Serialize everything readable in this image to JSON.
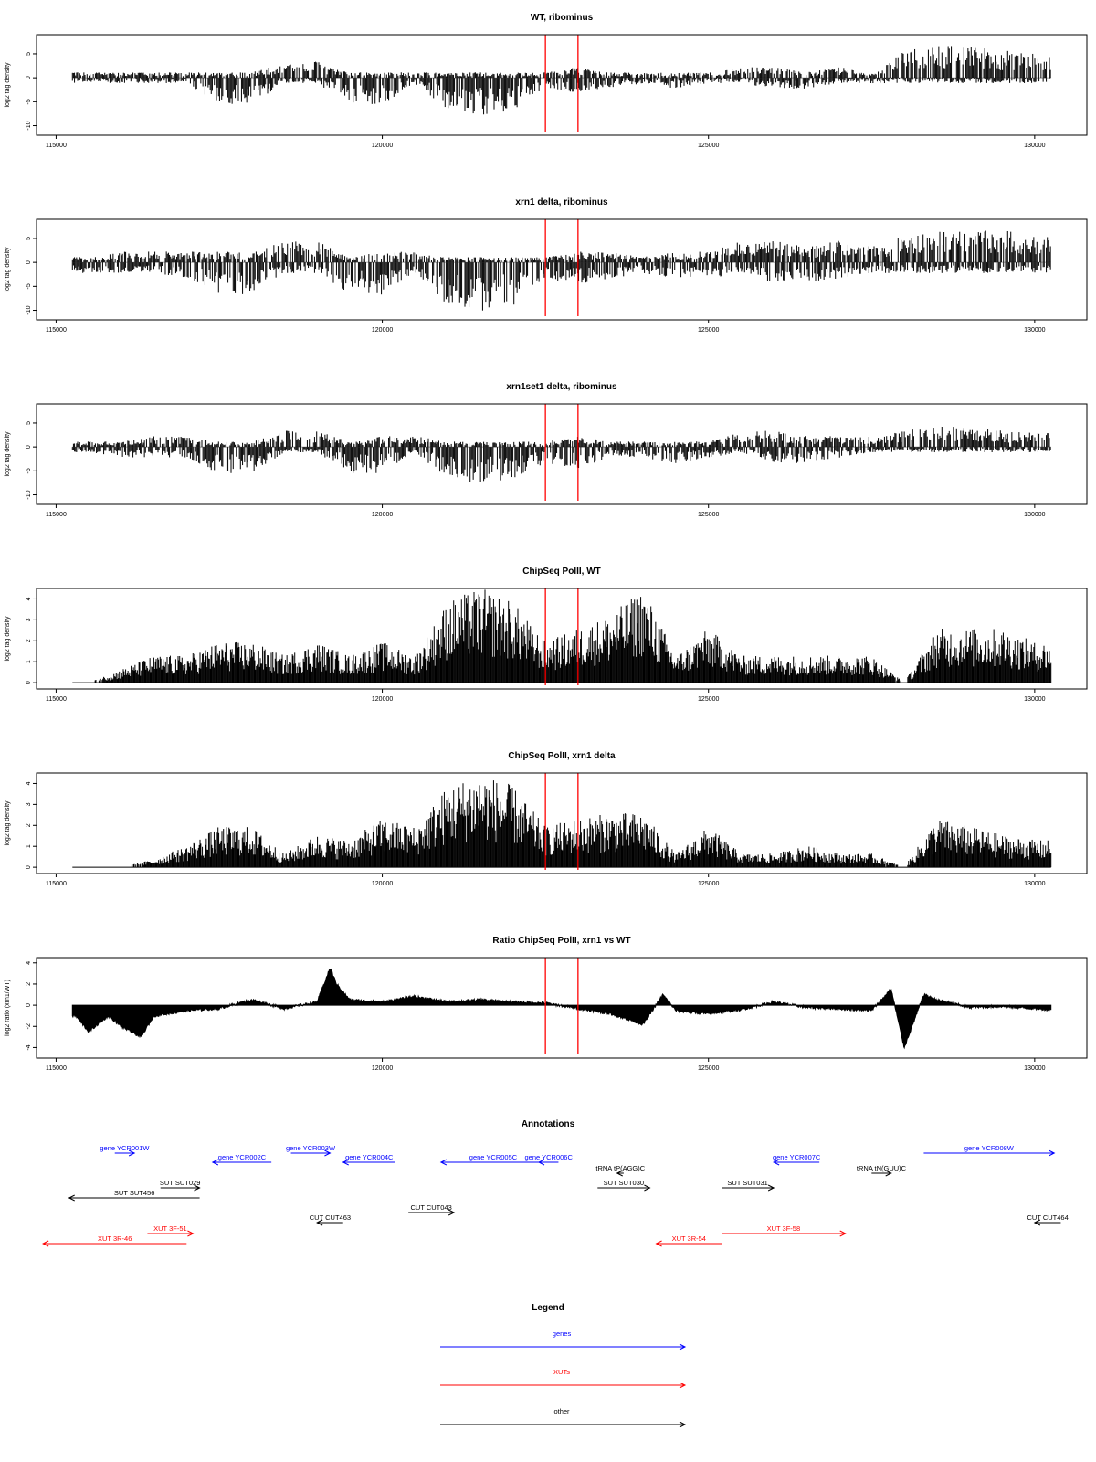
{
  "colors": {
    "genes": "#0000ff",
    "XUTs": "#ff0000",
    "other": "#000000",
    "marker": "#ff0000"
  },
  "x_axis": {
    "ticks": [
      115000,
      120000,
      125000,
      130000
    ],
    "labels": [
      "115000",
      "120000",
      "125000",
      "130000"
    ]
  },
  "markers": [
    122500,
    123000
  ],
  "chart_data": [
    {
      "type": "bar",
      "kind": "strand",
      "title": "WT, ribominus",
      "ylabel": "log2 tag density",
      "xlim": [
        114700,
        130800
      ],
      "ylim": [
        -12,
        9
      ],
      "yticks": [
        5,
        0,
        -5,
        -10
      ],
      "ytick_labels": [
        "5",
        "0",
        "-5",
        "-10"
      ],
      "x": [
        115500,
        116000,
        116500,
        117000,
        117500,
        118000,
        118500,
        119000,
        119500,
        120000,
        120500,
        121000,
        121500,
        122000,
        122500,
        123000,
        123500,
        124000,
        124500,
        125000,
        125500,
        126000,
        126500,
        127000,
        127500,
        128000,
        128500,
        129000,
        129500,
        130000
      ],
      "plus": [
        1,
        1,
        1,
        1,
        1,
        1,
        3,
        3,
        1,
        1,
        1,
        1,
        1,
        1,
        1,
        2,
        1,
        1,
        1,
        1,
        2,
        2,
        1,
        2,
        1,
        5,
        6,
        6,
        5,
        5
      ],
      "minus": [
        -1,
        -1,
        -1,
        -1,
        -5,
        -5,
        -1,
        -1,
        -5,
        -5,
        -1,
        -6,
        -7,
        -6,
        -2,
        -3,
        -2,
        -1,
        -2,
        -1,
        -1,
        -2,
        -2,
        -1,
        -1,
        -1,
        -1,
        -1,
        -1,
        -1
      ]
    },
    {
      "type": "bar",
      "kind": "strand",
      "title": "xrn1 delta, ribominus",
      "ylabel": "log2 tag density",
      "xlim": [
        114700,
        130800
      ],
      "ylim": [
        -12,
        9
      ],
      "yticks": [
        5,
        0,
        -5,
        -10
      ],
      "ytick_labels": [
        "5",
        "0",
        "-5",
        "-10"
      ],
      "x": [
        115500,
        116000,
        116500,
        117000,
        117500,
        118000,
        118500,
        119000,
        119500,
        120000,
        120500,
        121000,
        121500,
        122000,
        122500,
        123000,
        123500,
        124000,
        124500,
        125000,
        125500,
        126000,
        126500,
        127000,
        127500,
        128000,
        128500,
        129000,
        129500,
        130000
      ],
      "plus": [
        1,
        2,
        2,
        2,
        2,
        2,
        4,
        4,
        1,
        2,
        2,
        1,
        1,
        1,
        1,
        2,
        2,
        1,
        2,
        2,
        4,
        4,
        3,
        4,
        3,
        5,
        6,
        6,
        6,
        5
      ],
      "minus": [
        -2,
        -2,
        -2,
        -3,
        -6,
        -6,
        -2,
        -2,
        -6,
        -6,
        -2,
        -8,
        -9,
        -8,
        -3,
        -4,
        -3,
        -2,
        -3,
        -3,
        -2,
        -4,
        -4,
        -3,
        -2,
        -2,
        -2,
        -2,
        -2,
        -2
      ]
    },
    {
      "type": "bar",
      "kind": "strand",
      "title": "xrn1set1 delta, ribominus",
      "ylabel": "log2 tag density",
      "xlim": [
        114700,
        130800
      ],
      "ylim": [
        -12,
        9
      ],
      "yticks": [
        5,
        0,
        -5,
        -10
      ],
      "ytick_labels": [
        "5",
        "0",
        "-5",
        "-10"
      ],
      "x": [
        115500,
        116000,
        116500,
        117000,
        117500,
        118000,
        118500,
        119000,
        119500,
        120000,
        120500,
        121000,
        121500,
        122000,
        122500,
        123000,
        123500,
        124000,
        124500,
        125000,
        125500,
        126000,
        126500,
        127000,
        127500,
        128000,
        128500,
        129000,
        129500,
        130000
      ],
      "plus": [
        1,
        1,
        2,
        2,
        1,
        1,
        3,
        3,
        1,
        2,
        2,
        1,
        1,
        1,
        1,
        2,
        1,
        1,
        1,
        1,
        3,
        3,
        2,
        2,
        2,
        3,
        4,
        4,
        3,
        3
      ],
      "minus": [
        -1,
        -2,
        -2,
        -2,
        -5,
        -5,
        -1,
        -1,
        -5,
        -5,
        -1,
        -6,
        -7,
        -6,
        -3,
        -4,
        -2,
        -2,
        -3,
        -2,
        -1,
        -3,
        -3,
        -2,
        -1,
        -1,
        -1,
        -1,
        -1,
        -1
      ]
    },
    {
      "type": "bar",
      "kind": "positive",
      "title": "ChipSeq PolII, WT",
      "ylabel": "log2 tag density",
      "xlim": [
        114700,
        130800
      ],
      "ylim": [
        -0.3,
        4.5
      ],
      "yticks": [
        0,
        1,
        2,
        3,
        4
      ],
      "ytick_labels": [
        "0",
        "1",
        "2",
        "3",
        "4"
      ],
      "x": [
        115500,
        116000,
        116500,
        117000,
        117500,
        118000,
        118500,
        119000,
        119500,
        120000,
        120500,
        121000,
        121500,
        122000,
        122500,
        123000,
        123500,
        124000,
        124500,
        125000,
        125500,
        126000,
        126500,
        127000,
        127500,
        128000,
        128500,
        129000,
        129500,
        130000
      ],
      "values": [
        0,
        0.5,
        1,
        1,
        1.5,
        1.5,
        1,
        1.5,
        1,
        1.5,
        1,
        3,
        3.5,
        3,
        1.5,
        2,
        2.5,
        3.5,
        1,
        2,
        1,
        1,
        1,
        1,
        1,
        0,
        2,
        2,
        2,
        1.5
      ]
    },
    {
      "type": "bar",
      "kind": "positive",
      "title": "ChipSeq PolII, xrn1 delta",
      "ylabel": "log2 tag density",
      "xlim": [
        114700,
        130800
      ],
      "ylim": [
        -0.3,
        4.5
      ],
      "yticks": [
        0,
        1,
        2,
        3,
        4
      ],
      "ytick_labels": [
        "0",
        "1",
        "2",
        "3",
        "4"
      ],
      "x": [
        115500,
        116000,
        116500,
        117000,
        117500,
        118000,
        118500,
        119000,
        119500,
        120000,
        120500,
        121000,
        121500,
        122000,
        122500,
        123000,
        123500,
        124000,
        124500,
        125000,
        125500,
        126000,
        126500,
        127000,
        127500,
        128000,
        128500,
        129000,
        129500,
        130000
      ],
      "values": [
        0,
        0,
        0.3,
        0.8,
        1.5,
        1.5,
        0.5,
        1.2,
        1,
        1.8,
        1.5,
        3,
        3.5,
        3,
        1.5,
        1.8,
        2,
        2,
        0.5,
        1.5,
        0.5,
        0.5,
        0.8,
        0.5,
        0.5,
        0,
        1.8,
        1.5,
        1.2,
        1
      ]
    },
    {
      "type": "area",
      "kind": "signed",
      "title": "Ratio ChipSeq PolII, xrn1 vs WT",
      "ylabel": "log2 ratio (xrn1/WT)",
      "xlim": [
        114700,
        130800
      ],
      "ylim": [
        -5,
        4.5
      ],
      "yticks": [
        4,
        2,
        0,
        -2,
        -4
      ],
      "ytick_labels": [
        "4",
        "2",
        "0",
        "-2",
        "-4"
      ],
      "x": [
        115300,
        115500,
        115800,
        116000,
        116300,
        116500,
        117000,
        117500,
        118000,
        118500,
        119000,
        119200,
        119300,
        119500,
        120000,
        120500,
        121000,
        121500,
        122000,
        122500,
        123000,
        123500,
        124000,
        124300,
        124500,
        125000,
        125500,
        126000,
        126500,
        127000,
        127500,
        127800,
        128000,
        128300,
        128500,
        129000,
        129500,
        130000,
        130200
      ],
      "values": [
        -1,
        -2.5,
        -1,
        -2,
        -3,
        -1,
        -0.5,
        -0.3,
        0.5,
        -0.3,
        0.3,
        3.5,
        2,
        0.5,
        0.3,
        0.8,
        0.3,
        0.5,
        0.3,
        0.2,
        -0.3,
        -0.8,
        -1.8,
        1,
        -0.5,
        -0.8,
        -0.4,
        0.3,
        -0.2,
        -0.3,
        -0.5,
        1.5,
        -4,
        1,
        0.5,
        -0.2,
        -0.1,
        -0.3,
        -0.4
      ]
    }
  ],
  "annotations": {
    "title": "Annotations",
    "items": [
      {
        "label": "gene YCR001W",
        "category": "genes",
        "start": 115900,
        "end": 116200,
        "strand": "+",
        "row": 1
      },
      {
        "label": "gene YCR002C",
        "category": "genes",
        "start": 117400,
        "end": 118300,
        "strand": "-",
        "row": 2
      },
      {
        "label": "gene YCR003W",
        "category": "genes",
        "start": 118600,
        "end": 119200,
        "strand": "+",
        "row": 1
      },
      {
        "label": "gene YCR004C",
        "category": "genes",
        "start": 119400,
        "end": 120200,
        "strand": "-",
        "row": 2
      },
      {
        "label": "gene YCR005C",
        "category": "genes",
        "start": 120900,
        "end": 122500,
        "strand": "-",
        "row": 2
      },
      {
        "label": "gene YCR006C",
        "category": "genes",
        "start": 122400,
        "end": 122700,
        "strand": "-",
        "row": 2
      },
      {
        "label": "gene YCR007C",
        "category": "genes",
        "start": 126000,
        "end": 126700,
        "strand": "-",
        "row": 2
      },
      {
        "label": "gene YCR008W",
        "category": "genes",
        "start": 128300,
        "end": 130300,
        "strand": "+",
        "row": 1
      },
      {
        "label": "tRNA tP(AGG)C",
        "category": "other",
        "start": 123600,
        "end": 123700,
        "strand": "-",
        "row": 3
      },
      {
        "label": "tRNA tN(GUU)C",
        "category": "other",
        "start": 127500,
        "end": 127800,
        "strand": "+",
        "row": 3
      },
      {
        "label": "SUT SUT029",
        "category": "other",
        "start": 116600,
        "end": 117200,
        "strand": "+",
        "row": 4
      },
      {
        "label": "SUT SUT456",
        "category": "other",
        "start": 115200,
        "end": 117200,
        "strand": "-",
        "row": 5
      },
      {
        "label": "SUT SUT030",
        "category": "other",
        "start": 123300,
        "end": 124100,
        "strand": "+",
        "row": 4
      },
      {
        "label": "SUT SUT031",
        "category": "other",
        "start": 125200,
        "end": 126000,
        "strand": "+",
        "row": 4
      },
      {
        "label": "CUT CUT043",
        "category": "other",
        "start": 120400,
        "end": 121100,
        "strand": "+",
        "row": 6
      },
      {
        "label": "CUT CUT463",
        "category": "other",
        "start": 119000,
        "end": 119400,
        "strand": "-",
        "row": 7
      },
      {
        "label": "CUT CUT464",
        "category": "other",
        "start": 130000,
        "end": 130400,
        "strand": "-",
        "row": 7
      },
      {
        "label": "XUT 3F-51",
        "category": "XUTs",
        "start": 116400,
        "end": 117100,
        "strand": "+",
        "row": 8
      },
      {
        "label": "XUT 3R-46",
        "category": "XUTs",
        "start": 114800,
        "end": 117000,
        "strand": "-",
        "row": 9
      },
      {
        "label": "XUT 3R-54",
        "category": "XUTs",
        "start": 124200,
        "end": 125200,
        "strand": "-",
        "row": 9
      },
      {
        "label": "XUT 3F-58",
        "category": "XUTs",
        "start": 125200,
        "end": 127100,
        "strand": "+",
        "row": 8
      }
    ]
  },
  "legend": {
    "title": "Legend",
    "items": [
      {
        "label": "genes",
        "category": "genes"
      },
      {
        "label": "XUTs",
        "category": "XUTs"
      },
      {
        "label": "other",
        "category": "other"
      }
    ]
  }
}
